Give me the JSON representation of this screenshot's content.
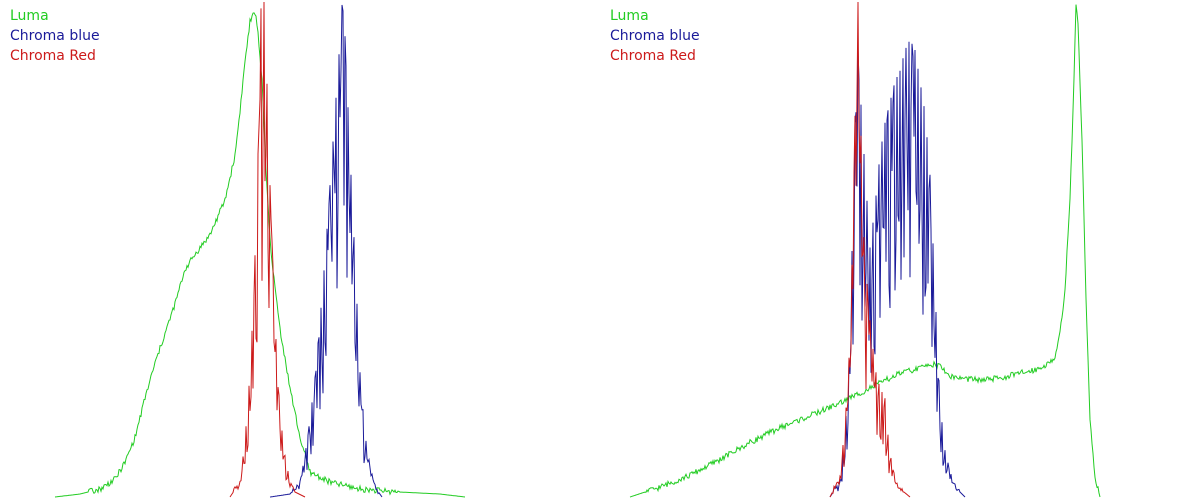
{
  "colors": {
    "luma": "#22cc22",
    "chroma_blue": "#1a1a99",
    "chroma_red": "#cc1a1a",
    "background": "#ffffff"
  },
  "chart_data": [
    {
      "type": "line",
      "title": "",
      "xlabel": "",
      "ylabel": "",
      "xlim": [
        0,
        600
      ],
      "ylim": [
        0,
        500
      ],
      "grid": false,
      "legend": "top-left",
      "legend_entries": [
        "Luma",
        "Chroma blue",
        "Chroma Red"
      ],
      "series": [
        {
          "name": "Luma",
          "color": "#22cc22",
          "peaks": [
            {
              "center": 248,
              "width": 18,
              "height": 500
            },
            {
              "center": 200,
              "width": 50,
              "height": 240
            }
          ],
          "points": [
            [
              55,
              0
            ],
            [
              80,
              3
            ],
            [
              100,
              8
            ],
            [
              115,
              18
            ],
            [
              125,
              35
            ],
            [
              135,
              60
            ],
            [
              145,
              100
            ],
            [
              155,
              135
            ],
            [
              165,
              165
            ],
            [
              175,
              195
            ],
            [
              185,
              230
            ],
            [
              195,
              245
            ],
            [
              210,
              265
            ],
            [
              225,
              300
            ],
            [
              235,
              345
            ],
            [
              240,
              390
            ],
            [
              245,
              440
            ],
            [
              250,
              480
            ],
            [
              255,
              490
            ],
            [
              258,
              470
            ],
            [
              262,
              420
            ],
            [
              266,
              330
            ],
            [
              270,
              260
            ],
            [
              274,
              220
            ],
            [
              280,
              170
            ],
            [
              290,
              110
            ],
            [
              300,
              60
            ],
            [
              310,
              25
            ],
            [
              330,
              15
            ],
            [
              360,
              8
            ],
            [
              400,
              5
            ],
            [
              440,
              3
            ],
            [
              465,
              0
            ]
          ]
        },
        {
          "name": "Chroma blue",
          "color": "#1a1a99",
          "peaks": [
            {
              "center": 340,
              "width": 15,
              "height": 480
            }
          ],
          "points": [
            [
              270,
              0
            ],
            [
              290,
              3
            ],
            [
              300,
              15
            ],
            [
              305,
              40
            ],
            [
              310,
              75
            ],
            [
              315,
              115
            ],
            [
              320,
              170
            ],
            [
              325,
              230
            ],
            [
              330,
              300
            ],
            [
              335,
              370
            ],
            [
              340,
              440
            ],
            [
              343,
              490
            ],
            [
              346,
              420
            ],
            [
              350,
              330
            ],
            [
              355,
              230
            ],
            [
              360,
              120
            ],
            [
              365,
              60
            ],
            [
              370,
              30
            ],
            [
              375,
              10
            ],
            [
              382,
              0
            ]
          ]
        },
        {
          "name": "Chroma Red",
          "color": "#cc1a1a",
          "peaks": [
            {
              "center": 262,
              "width": 6,
              "height": 500
            }
          ],
          "points": [
            [
              230,
              0
            ],
            [
              240,
              15
            ],
            [
              245,
              55
            ],
            [
              250,
              120
            ],
            [
              254,
              200
            ],
            [
              258,
              330
            ],
            [
              261,
              470
            ],
            [
              263,
              500
            ],
            [
              266,
              430
            ],
            [
              270,
              300
            ],
            [
              275,
              170
            ],
            [
              280,
              80
            ],
            [
              285,
              40
            ],
            [
              290,
              15
            ],
            [
              295,
              5
            ],
            [
              305,
              0
            ]
          ]
        }
      ]
    },
    {
      "type": "line",
      "title": "",
      "xlabel": "",
      "ylabel": "",
      "xlim": [
        0,
        600
      ],
      "ylim": [
        0,
        500
      ],
      "grid": false,
      "legend": "top-left",
      "legend_entries": [
        "Luma",
        "Chroma blue",
        "Chroma Red"
      ],
      "series": [
        {
          "name": "Luma",
          "color": "#22cc22",
          "points": [
            [
              30,
              0
            ],
            [
              60,
              10
            ],
            [
              90,
              22
            ],
            [
              120,
              38
            ],
            [
              150,
              55
            ],
            [
              180,
              70
            ],
            [
              210,
              82
            ],
            [
              240,
              95
            ],
            [
              260,
              105
            ],
            [
              280,
              115
            ],
            [
              300,
              125
            ],
            [
              320,
              130
            ],
            [
              330,
              135
            ],
            [
              340,
              132
            ],
            [
              350,
              122
            ],
            [
              360,
              120
            ],
            [
              380,
              118
            ],
            [
              400,
              120
            ],
            [
              420,
              125
            ],
            [
              440,
              130
            ],
            [
              455,
              140
            ],
            [
              460,
              165
            ],
            [
              465,
              210
            ],
            [
              470,
              300
            ],
            [
              474,
              420
            ],
            [
              476,
              500
            ],
            [
              478,
              480
            ],
            [
              482,
              360
            ],
            [
              486,
              200
            ],
            [
              490,
              80
            ],
            [
              495,
              20
            ],
            [
              500,
              0
            ]
          ]
        },
        {
          "name": "Chroma blue",
          "color": "#1a1a99",
          "points": [
            [
              230,
              0
            ],
            [
              240,
              15
            ],
            [
              245,
              60
            ],
            [
              250,
              150
            ],
            [
              253,
              280
            ],
            [
              256,
              400
            ],
            [
              258,
              430
            ],
            [
              262,
              360
            ],
            [
              266,
              300
            ],
            [
              270,
              240
            ],
            [
              275,
              280
            ],
            [
              280,
              330
            ],
            [
              285,
              360
            ],
            [
              290,
              380
            ],
            [
              295,
              400
            ],
            [
              300,
              410
            ],
            [
              305,
              430
            ],
            [
              310,
              440
            ],
            [
              315,
              430
            ],
            [
              320,
              400
            ],
            [
              325,
              370
            ],
            [
              330,
              310
            ],
            [
              335,
              200
            ],
            [
              340,
              90
            ],
            [
              345,
              45
            ],
            [
              350,
              25
            ],
            [
              355,
              10
            ],
            [
              365,
              0
            ]
          ]
        },
        {
          "name": "Chroma Red",
          "color": "#cc1a1a",
          "points": [
            [
              230,
              0
            ],
            [
              240,
              20
            ],
            [
              245,
              70
            ],
            [
              250,
              150
            ],
            [
              253,
              260
            ],
            [
              256,
              420
            ],
            [
              258,
              500
            ],
            [
              260,
              380
            ],
            [
              264,
              250
            ],
            [
              268,
              190
            ],
            [
              272,
              150
            ],
            [
              276,
              120
            ],
            [
              280,
              105
            ],
            [
              285,
              95
            ],
            [
              288,
              60
            ],
            [
              292,
              30
            ],
            [
              298,
              10
            ],
            [
              310,
              0
            ]
          ]
        }
      ]
    }
  ]
}
